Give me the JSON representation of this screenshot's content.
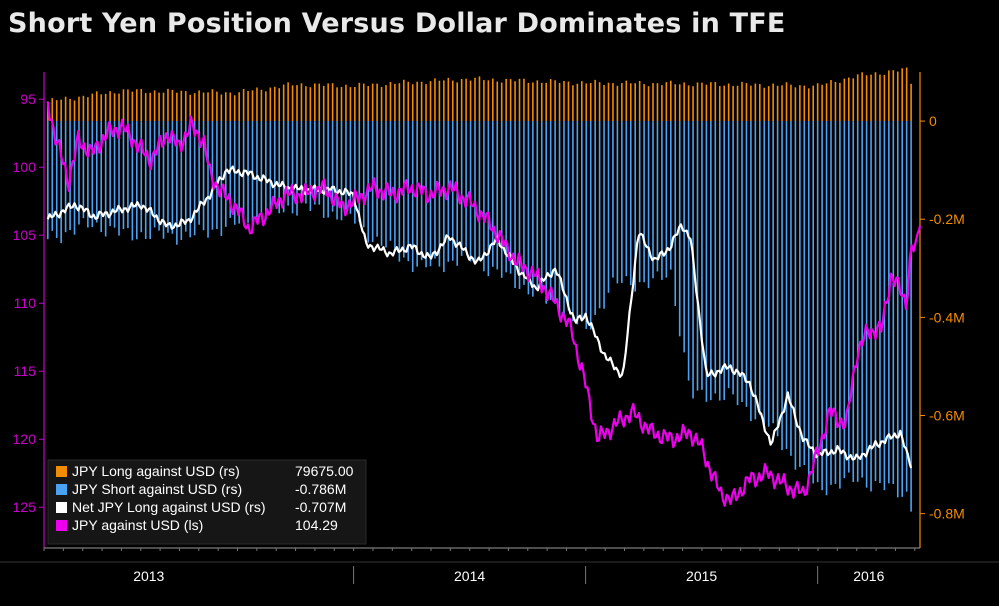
{
  "chart_data": {
    "type": "bar",
    "title": "Short Yen Position Versus Dollar Dominates in TFE",
    "x_axis": {
      "labels": [
        "2013",
        "2014",
        "2015",
        "2016"
      ],
      "range": [
        "2012-09-01",
        "2016-06-10"
      ],
      "label_dates": [
        "2013-01-01",
        "2014-01-01",
        "2015-01-01",
        "2016-01-01"
      ]
    },
    "left_axis": {
      "reversed": true,
      "range": [
        93,
        128
      ],
      "ticks": [
        95,
        100,
        105,
        110,
        115,
        120,
        125
      ],
      "color": "#cc00cc"
    },
    "right_axis": {
      "range": [
        100000,
        -870000
      ],
      "ticks": [
        0,
        -200000,
        -400000,
        -600000,
        -800000
      ],
      "tick_labels": [
        "0",
        "-0.2M",
        "-0.4M",
        "-0.6M",
        "-0.8M"
      ],
      "color": "#f28c00"
    },
    "series": [
      {
        "name": "JPY Long against USD (rs)",
        "type": "bar",
        "axis": "right",
        "color": "#f28c00",
        "last_value": "79675.00",
        "frequency": "weekly",
        "points": [
          [
            "2012-09-07",
            40000
          ],
          [
            "2013-01-01",
            62000
          ],
          [
            "2013-07-01",
            58000
          ],
          [
            "2013-10-01",
            75000
          ],
          [
            "2014-01-01",
            72000
          ],
          [
            "2014-07-01",
            86000
          ],
          [
            "2015-01-01",
            78000
          ],
          [
            "2015-07-01",
            76000
          ],
          [
            "2016-01-01",
            72000
          ],
          [
            "2016-03-01",
            92000
          ],
          [
            "2016-05-20",
            105000
          ],
          [
            "2016-05-27",
            80000
          ]
        ]
      },
      {
        "name": "JPY Short against USD (rs)",
        "type": "bar",
        "axis": "right",
        "color": "#4aa3f2",
        "last_value": "-0.786M",
        "frequency": "weekly",
        "points": [
          [
            "2012-09-07",
            -240000
          ],
          [
            "2012-11-15",
            -210000
          ],
          [
            "2013-01-01",
            -230000
          ],
          [
            "2013-04-15",
            -235000
          ],
          [
            "2013-07-01",
            -210000
          ],
          [
            "2013-09-15",
            -180000
          ],
          [
            "2013-10-15",
            -175000
          ],
          [
            "2014-01-01",
            -200000
          ],
          [
            "2014-02-01",
            -240000
          ],
          [
            "2014-04-15",
            -300000
          ],
          [
            "2014-07-01",
            -280000
          ],
          [
            "2014-09-15",
            -330000
          ],
          [
            "2014-12-01",
            -390000
          ],
          [
            "2015-01-01",
            -430000
          ],
          [
            "2015-02-15",
            -330000
          ],
          [
            "2015-04-15",
            -330000
          ],
          [
            "2015-05-15",
            -310000
          ],
          [
            "2015-06-15",
            -560000
          ],
          [
            "2015-08-15",
            -560000
          ],
          [
            "2015-10-15",
            -620000
          ],
          [
            "2015-11-01",
            -650000
          ],
          [
            "2015-12-01",
            -700000
          ],
          [
            "2016-01-01",
            -750000
          ],
          [
            "2016-03-01",
            -730000
          ],
          [
            "2016-05-20",
            -760000
          ],
          [
            "2016-05-27",
            -786000
          ]
        ]
      },
      {
        "name": "Net JPY Long against USD (rs)",
        "type": "line",
        "axis": "right",
        "color": "#ffffff",
        "last_value": "-0.707M",
        "points": [
          [
            "2012-09-07",
            -200000
          ],
          [
            "2012-10-20",
            -170000
          ],
          [
            "2012-11-20",
            -195000
          ],
          [
            "2013-01-01",
            -180000
          ],
          [
            "2013-02-01",
            -170000
          ],
          [
            "2013-03-15",
            -215000
          ],
          [
            "2013-04-15",
            -205000
          ],
          [
            "2013-05-20",
            -150000
          ],
          [
            "2013-06-15",
            -100000
          ],
          [
            "2013-07-15",
            -105000
          ],
          [
            "2013-08-15",
            -120000
          ],
          [
            "2013-09-15",
            -135000
          ],
          [
            "2013-10-15",
            -140000
          ],
          [
            "2013-12-01",
            -140000
          ],
          [
            "2014-01-01",
            -150000
          ],
          [
            "2014-01-20",
            -250000
          ],
          [
            "2014-03-01",
            -270000
          ],
          [
            "2014-04-01",
            -255000
          ],
          [
            "2014-05-01",
            -280000
          ],
          [
            "2014-06-01",
            -235000
          ],
          [
            "2014-07-15",
            -290000
          ],
          [
            "2014-08-15",
            -240000
          ],
          [
            "2014-09-15",
            -300000
          ],
          [
            "2014-10-15",
            -340000
          ],
          [
            "2014-11-15",
            -300000
          ],
          [
            "2014-12-15",
            -410000
          ],
          [
            "2015-01-01",
            -395000
          ],
          [
            "2015-02-01",
            -480000
          ],
          [
            "2015-03-01",
            -520000
          ],
          [
            "2015-03-25",
            -225000
          ],
          [
            "2015-04-20",
            -285000
          ],
          [
            "2015-05-15",
            -255000
          ],
          [
            "2015-06-01",
            -210000
          ],
          [
            "2015-06-15",
            -240000
          ],
          [
            "2015-07-10",
            -520000
          ],
          [
            "2015-08-15",
            -500000
          ],
          [
            "2015-09-15",
            -530000
          ],
          [
            "2015-10-20",
            -660000
          ],
          [
            "2015-11-15",
            -560000
          ],
          [
            "2015-12-10",
            -650000
          ],
          [
            "2016-01-01",
            -680000
          ],
          [
            "2016-02-01",
            -670000
          ],
          [
            "2016-03-01",
            -690000
          ],
          [
            "2016-04-01",
            -660000
          ],
          [
            "2016-05-10",
            -635000
          ],
          [
            "2016-05-27",
            -707000
          ]
        ]
      },
      {
        "name": "JPY against USD (ls)",
        "type": "line",
        "axis": "left",
        "color": "#ee00ee",
        "last_value": "104.29",
        "points": [
          [
            "2012-09-07",
            95.2
          ],
          [
            "2012-09-20",
            98
          ],
          [
            "2012-10-10",
            101
          ],
          [
            "2012-10-25",
            98
          ],
          [
            "2012-11-15",
            99
          ],
          [
            "2012-12-10",
            97.5
          ],
          [
            "2013-01-01",
            97
          ],
          [
            "2013-01-20",
            98
          ],
          [
            "2013-02-15",
            99.5
          ],
          [
            "2013-03-15",
            97.5
          ],
          [
            "2013-04-01",
            98.5
          ],
          [
            "2013-04-20",
            97
          ],
          [
            "2013-05-10",
            98
          ],
          [
            "2013-05-20",
            100.5
          ],
          [
            "2013-06-10",
            102
          ],
          [
            "2013-07-01",
            103
          ],
          [
            "2013-07-20",
            104.5
          ],
          [
            "2013-08-15",
            103.5
          ],
          [
            "2013-09-15",
            102
          ],
          [
            "2013-10-15",
            102
          ],
          [
            "2013-11-15",
            101.5
          ],
          [
            "2013-12-15",
            103
          ],
          [
            "2014-01-01",
            102.5
          ],
          [
            "2014-02-01",
            101.5
          ],
          [
            "2014-03-01",
            102
          ],
          [
            "2014-04-01",
            101.5
          ],
          [
            "2014-05-01",
            102
          ],
          [
            "2014-06-01",
            101.5
          ],
          [
            "2014-07-01",
            102.5
          ],
          [
            "2014-08-01",
            104
          ],
          [
            "2014-09-15",
            107
          ],
          [
            "2014-10-15",
            108
          ],
          [
            "2014-11-15",
            110
          ],
          [
            "2014-12-10",
            112
          ],
          [
            "2015-01-01",
            116
          ],
          [
            "2015-01-20",
            120
          ],
          [
            "2015-02-15",
            119
          ],
          [
            "2015-03-15",
            118
          ],
          [
            "2015-04-15",
            119.5
          ],
          [
            "2015-05-15",
            120
          ],
          [
            "2015-06-15",
            119.5
          ],
          [
            "2015-07-01",
            120.5
          ],
          [
            "2015-08-01",
            124
          ],
          [
            "2015-08-20",
            124.5
          ],
          [
            "2015-09-15",
            123
          ],
          [
            "2015-10-15",
            122.5
          ],
          [
            "2015-11-15",
            123.5
          ],
          [
            "2015-12-10",
            124
          ],
          [
            "2016-01-01",
            121
          ],
          [
            "2016-01-20",
            118
          ],
          [
            "2016-02-15",
            119
          ],
          [
            "2016-03-01",
            114
          ],
          [
            "2016-03-20",
            112
          ],
          [
            "2016-04-10",
            112
          ],
          [
            "2016-04-25",
            108
          ],
          [
            "2016-05-10",
            109
          ],
          [
            "2016-05-20",
            110
          ],
          [
            "2016-05-27",
            106
          ],
          [
            "2016-06-03",
            106
          ],
          [
            "2016-06-10",
            104.29
          ]
        ]
      }
    ],
    "legend": {
      "placement": "bottom-left"
    },
    "grid": false
  }
}
